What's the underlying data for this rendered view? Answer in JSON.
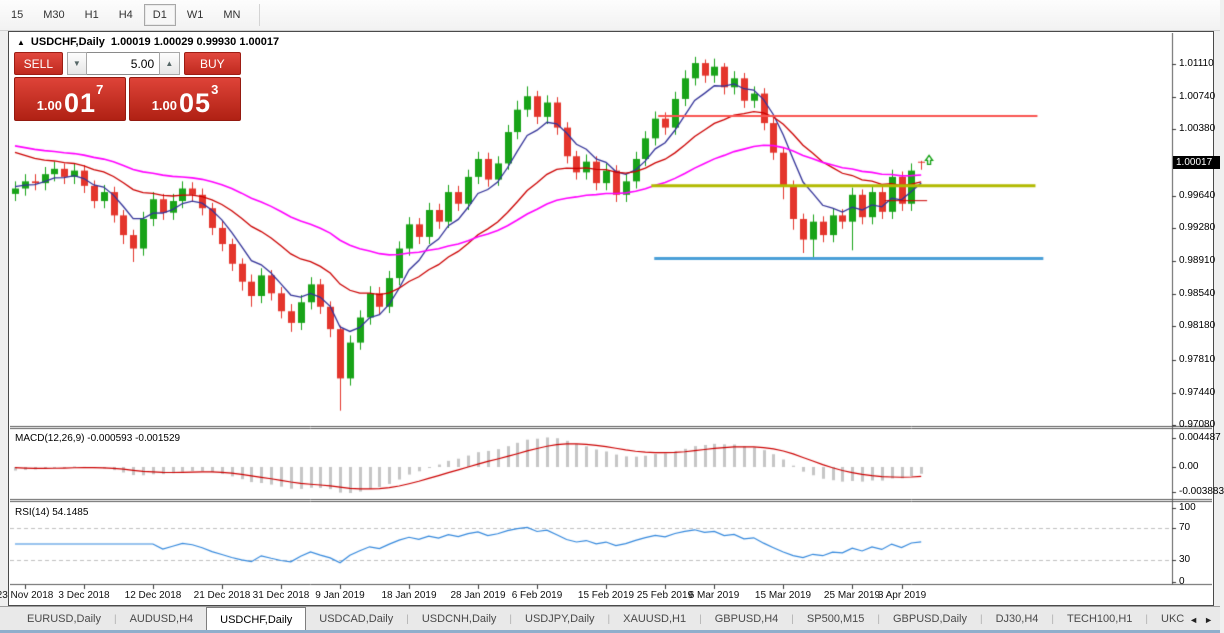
{
  "toolbar": {
    "timeframes": [
      "15",
      "M30",
      "H1",
      "H4",
      "D1",
      "W1",
      "MN"
    ],
    "active": "D1"
  },
  "chart": {
    "title_arrow": "▲",
    "title_symbol": "USDCHF,Daily",
    "title_quotes": "1.00019 1.00029 0.99930 1.00017"
  },
  "trade_widget": {
    "sell_label": "SELL",
    "buy_label": "BUY",
    "volume": "5.00",
    "volume_down_icon": "▼",
    "volume_up_icon": "▲",
    "sell_price_small": "1.00",
    "sell_price_big": "01",
    "sell_price_sup": "7",
    "buy_price_small": "1.00",
    "buy_price_big": "05",
    "buy_price_sup": "3"
  },
  "colors": {
    "bull": "#18a318",
    "bear": "#e4352c",
    "ma_fast": "#333399",
    "ma_mid": "#cc0000",
    "ma_slow": "#ff00ff",
    "macd_hist": "#c6c6c6",
    "macd_signal": "#cc0000",
    "rsi_line": "#3388dd",
    "rsi_levels": "#c0c0c0",
    "hline_red": "#fa5450",
    "hline_olive": "#b2ba00",
    "hline_blue": "#4a9fd8",
    "tag_bg": "#000000"
  },
  "chart_data": {
    "type": "candlestick",
    "symbol": "USDCHF",
    "timeframe": "Daily",
    "quote": {
      "open": "1.00019",
      "high": "1.00029",
      "low": "0.99930",
      "close": "1.00017"
    },
    "price_axis": {
      "ticks": [
        "1.01110",
        "1.00740",
        "1.00380",
        "0.99640",
        "0.99280",
        "0.98910",
        "0.98540",
        "0.98180",
        "0.97810",
        "0.97440",
        "0.97080"
      ],
      "current": "1.00017"
    },
    "x_ticks": [
      {
        "i": 1,
        "label": "23 Nov 2018"
      },
      {
        "i": 7,
        "label": "3 Dec 2018"
      },
      {
        "i": 14,
        "label": "12 Dec 2018"
      },
      {
        "i": 21,
        "label": "21 Dec 2018"
      },
      {
        "i": 27,
        "label": "31 Dec 2018"
      },
      {
        "i": 33,
        "label": "9 Jan 2019"
      },
      {
        "i": 40,
        "label": "18 Jan 2019"
      },
      {
        "i": 47,
        "label": "28 Jan 2019"
      },
      {
        "i": 53,
        "label": "6 Feb 2019"
      },
      {
        "i": 60,
        "label": "15 Feb 2019"
      },
      {
        "i": 66,
        "label": "25 Feb 2019"
      },
      {
        "i": 71,
        "label": "6 Mar 2019"
      },
      {
        "i": 78,
        "label": "15 Mar 2019"
      },
      {
        "i": 85,
        "label": "25 Mar 2019"
      },
      {
        "i": 90,
        "label": "3 Apr 2019"
      }
    ],
    "candles": [
      [
        0.9966,
        0.998,
        0.9958,
        0.9972
      ],
      [
        0.9972,
        0.9988,
        0.9964,
        0.998
      ],
      [
        0.998,
        0.9988,
        0.997,
        0.9978
      ],
      [
        0.9978,
        0.9996,
        0.997,
        0.9988
      ],
      [
        0.9988,
        1.0002,
        0.998,
        0.9994
      ],
      [
        0.9994,
        1.0,
        0.9977,
        0.9985
      ],
      [
        0.9985,
        1.0,
        0.9977,
        0.9992
      ],
      [
        0.9992,
        0.9998,
        0.9967,
        0.9975
      ],
      [
        0.9975,
        0.9981,
        0.995,
        0.9958
      ],
      [
        0.9958,
        0.9976,
        0.995,
        0.9968
      ],
      [
        0.9968,
        0.9974,
        0.9934,
        0.9942
      ],
      [
        0.9942,
        0.9948,
        0.991,
        0.992
      ],
      [
        0.992,
        0.9926,
        0.989,
        0.9905
      ],
      [
        0.9905,
        0.9946,
        0.9897,
        0.9938
      ],
      [
        0.9938,
        0.9968,
        0.993,
        0.996
      ],
      [
        0.996,
        0.9966,
        0.9937,
        0.9945
      ],
      [
        0.9945,
        0.9966,
        0.9937,
        0.9958
      ],
      [
        0.9958,
        0.998,
        0.995,
        0.9972
      ],
      [
        0.9972,
        0.9979,
        0.9957,
        0.9965
      ],
      [
        0.9965,
        0.9972,
        0.9942,
        0.995
      ],
      [
        0.995,
        0.9956,
        0.992,
        0.9928
      ],
      [
        0.9928,
        0.9936,
        0.9902,
        0.991
      ],
      [
        0.991,
        0.9916,
        0.988,
        0.9888
      ],
      [
        0.9888,
        0.9894,
        0.9858,
        0.9868
      ],
      [
        0.9868,
        0.9876,
        0.984,
        0.9852
      ],
      [
        0.9852,
        0.9883,
        0.9844,
        0.9875
      ],
      [
        0.9875,
        0.9881,
        0.9847,
        0.9855
      ],
      [
        0.9855,
        0.9862,
        0.9827,
        0.9835
      ],
      [
        0.9835,
        0.9843,
        0.9812,
        0.9822
      ],
      [
        0.9822,
        0.9853,
        0.9814,
        0.9845
      ],
      [
        0.9845,
        0.9873,
        0.9837,
        0.9865
      ],
      [
        0.9865,
        0.9871,
        0.9832,
        0.984
      ],
      [
        0.984,
        0.9846,
        0.9806,
        0.9815
      ],
      [
        0.9815,
        0.9819,
        0.9724,
        0.976
      ],
      [
        0.976,
        0.9808,
        0.9752,
        0.98
      ],
      [
        0.98,
        0.9836,
        0.9792,
        0.9828
      ],
      [
        0.9828,
        0.9863,
        0.982,
        0.9855
      ],
      [
        0.9855,
        0.9862,
        0.9832,
        0.984
      ],
      [
        0.984,
        0.988,
        0.9833,
        0.9872
      ],
      [
        0.9872,
        0.9913,
        0.9864,
        0.9905
      ],
      [
        0.9905,
        0.994,
        0.9897,
        0.9932
      ],
      [
        0.9932,
        0.9939,
        0.991,
        0.9918
      ],
      [
        0.9918,
        0.9956,
        0.991,
        0.9948
      ],
      [
        0.9948,
        0.9955,
        0.9927,
        0.9935
      ],
      [
        0.9935,
        0.9976,
        0.9928,
        0.9968
      ],
      [
        0.9968,
        0.9975,
        0.9947,
        0.9955
      ],
      [
        0.9955,
        0.9993,
        0.9948,
        0.9985
      ],
      [
        0.9985,
        1.0013,
        0.9977,
        1.0005
      ],
      [
        1.0005,
        1.0012,
        0.9974,
        0.9982
      ],
      [
        0.9982,
        1.0008,
        0.9975,
        1.0
      ],
      [
        1.0,
        1.0043,
        0.9993,
        1.0035
      ],
      [
        1.0035,
        1.007,
        1.0027,
        1.006
      ],
      [
        1.006,
        1.0086,
        1.0052,
        1.0075
      ],
      [
        1.0075,
        1.0081,
        1.0044,
        1.0052
      ],
      [
        1.0052,
        1.0076,
        1.0044,
        1.0068
      ],
      [
        1.0068,
        1.0074,
        1.0032,
        1.004
      ],
      [
        1.004,
        1.0046,
        1.0,
        1.0008
      ],
      [
        1.0008,
        1.0014,
        0.9982,
        0.999
      ],
      [
        0.999,
        1.001,
        0.9982,
        1.0002
      ],
      [
        1.0002,
        1.0008,
        0.997,
        0.9978
      ],
      [
        0.9978,
        1.0,
        0.997,
        0.9992
      ],
      [
        0.9992,
        0.9998,
        0.9957,
        0.9965
      ],
      [
        0.9965,
        0.9988,
        0.9957,
        0.998
      ],
      [
        0.998,
        1.0013,
        0.9972,
        1.0005
      ],
      [
        1.0005,
        1.0036,
        0.9997,
        1.0028
      ],
      [
        1.0028,
        1.0058,
        1.002,
        1.005
      ],
      [
        1.005,
        1.0057,
        1.0032,
        1.004
      ],
      [
        1.004,
        1.008,
        1.0032,
        1.0072
      ],
      [
        1.0072,
        1.0104,
        1.0064,
        1.0095
      ],
      [
        1.0095,
        1.0119,
        1.0087,
        1.0112
      ],
      [
        1.0112,
        1.0116,
        1.009,
        1.0098
      ],
      [
        1.0098,
        1.0117,
        1.009,
        1.0108
      ],
      [
        1.0108,
        1.0112,
        1.0077,
        1.0085
      ],
      [
        1.0085,
        1.0103,
        1.0077,
        1.0095
      ],
      [
        1.0095,
        1.0101,
        1.0062,
        1.007
      ],
      [
        1.007,
        1.0086,
        1.0062,
        1.0078
      ],
      [
        1.0078,
        1.0084,
        1.0037,
        1.0045
      ],
      [
        1.0045,
        1.0051,
        1.0004,
        1.0012
      ],
      [
        1.0012,
        1.0018,
        0.996,
        0.9975
      ],
      [
        0.9975,
        0.9981,
        0.9926,
        0.9938
      ],
      [
        0.9938,
        0.9944,
        0.99,
        0.9915
      ],
      [
        0.9915,
        0.9943,
        0.9893,
        0.9935
      ],
      [
        0.9935,
        0.9941,
        0.9912,
        0.992
      ],
      [
        0.992,
        0.995,
        0.9912,
        0.9942
      ],
      [
        0.9942,
        0.9949,
        0.9927,
        0.9935
      ],
      [
        0.9935,
        0.9973,
        0.9903,
        0.9965
      ],
      [
        0.9965,
        0.9971,
        0.9932,
        0.994
      ],
      [
        0.994,
        0.9976,
        0.9932,
        0.9968
      ],
      [
        0.9968,
        0.9974,
        0.9938,
        0.9946
      ],
      [
        0.9946,
        0.9993,
        0.9938,
        0.9985
      ],
      [
        0.9985,
        0.9991,
        0.9947,
        0.9955
      ],
      [
        0.9955,
        1.0,
        0.9947,
        0.9992
      ],
      [
        1.00019,
        1.00029,
        0.9993,
        1.00017
      ]
    ],
    "overlays": {
      "ma_fast": {
        "type": "ema",
        "period": 6,
        "seed": 0.9975
      },
      "ma_mid": {
        "type": "ema",
        "period": 18,
        "seed": 1.0017
      },
      "ma_slow": {
        "type": "ema",
        "period": 40,
        "seed": 1.0022
      },
      "hlines": [
        {
          "price": 1.0053,
          "i1": 65.3,
          "i2": 103.8,
          "width": 2,
          "color_key": "hline_red"
        },
        {
          "price": 0.9975,
          "i1": 64.6,
          "i2": 103.6,
          "width": 3,
          "color_key": "hline_olive"
        },
        {
          "price": 0.9894,
          "i1": 64.9,
          "i2": 104.4,
          "width": 3,
          "color_key": "hline_blue"
        }
      ]
    },
    "markers": [
      {
        "type": "hsegment",
        "price": 0.9959,
        "i1": 88.3,
        "i2": 92.6,
        "color_key": "ma_mid"
      },
      {
        "type": "arrow_up",
        "i": 92.8,
        "price": 1.0009,
        "color_key": "bull"
      }
    ],
    "macd": {
      "label": "MACD(12,26,9) -0.000593 -0.001529",
      "fast": 12,
      "slow": 26,
      "signal_period": 9,
      "seed_fast": 0.9972,
      "seed_slow": 0.9978,
      "current_main": -0.000593,
      "current_signal": -0.001529,
      "axis": [
        {
          "v": 0.004487,
          "label": "0.004487"
        },
        {
          "v": 0,
          "label": "0.00"
        },
        {
          "v": -0.003883,
          "label": "-0.003883"
        }
      ]
    },
    "rsi": {
      "label": "RSI(14) 54.1485",
      "period": 14,
      "current": 54.1485,
      "levels": [
        70,
        30
      ],
      "axis": [
        {
          "v": 100,
          "label": "100"
        },
        {
          "v": 70,
          "label": "70"
        },
        {
          "v": 30,
          "label": "30"
        },
        {
          "v": 0,
          "label": "0"
        }
      ]
    }
  },
  "tabs": {
    "items": [
      "EURUSD,Daily",
      "AUDUSD,H4",
      "USDCHF,Daily",
      "USDCAD,Daily",
      "USDCNH,Daily",
      "USDJPY,Daily",
      "XAUUSD,H1",
      "GBPUSD,H4",
      "SP500,M15",
      "GBPUSD,Daily",
      "DJ30,H4",
      "TECH100,H1",
      "UKC"
    ],
    "active_index": 2,
    "separator": "|",
    "left_arrow": "◄",
    "right_arrow": "►"
  }
}
